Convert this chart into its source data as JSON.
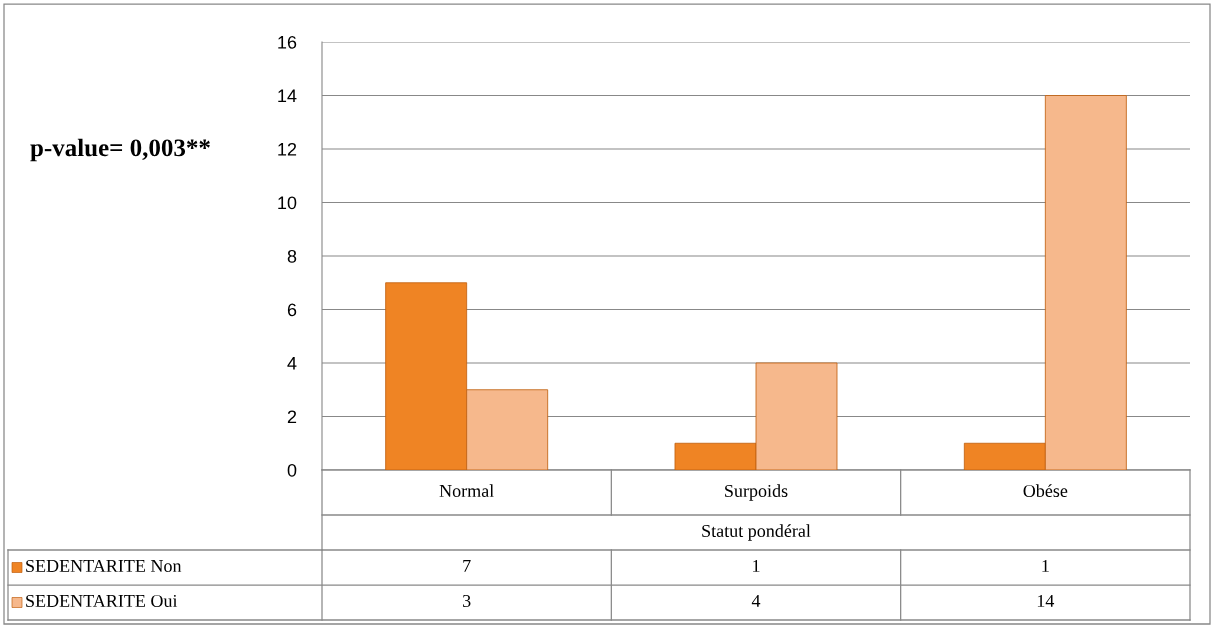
{
  "chart_data": {
    "type": "bar",
    "xlabel": "Statut pondéral",
    "categories": [
      "Normal",
      "Surpoids",
      "Obése"
    ],
    "series": [
      {
        "name": "SEDENTARITE Non",
        "color": "#ef8424",
        "values": [
          7,
          1,
          1
        ]
      },
      {
        "name": "SEDENTARITE Oui",
        "color": "#f6b88c",
        "values": [
          3,
          4,
          14
        ]
      }
    ],
    "ylim": [
      0,
      16
    ],
    "yticks": [
      0,
      2,
      4,
      6,
      8,
      10,
      12,
      14,
      16
    ],
    "grid": "y",
    "data_labels": true,
    "legend": "bottom left",
    "annotations": [
      "p-value= 0,003**"
    ]
  }
}
